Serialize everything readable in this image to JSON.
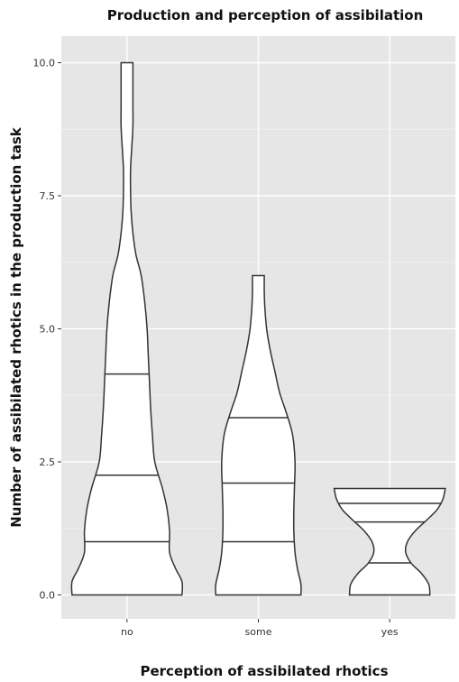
{
  "chart_data": {
    "type": "violin",
    "title": "Production and perception of assibilation",
    "xlabel": "Perception of assibilated rhotics",
    "ylabel": "Number of assibilated rhotics in the production task",
    "ylim": [
      -0.45,
      10.5
    ],
    "yticks": [
      0.0,
      2.5,
      5.0,
      7.5,
      10.0
    ],
    "ytick_labels": [
      "0.0",
      "2.5",
      "5.0",
      "7.5",
      "10.0"
    ],
    "categories": [
      "no",
      "some",
      "yes"
    ],
    "grid": true,
    "legend": "none",
    "violins": [
      {
        "category": "no",
        "range": [
          0,
          10
        ],
        "quantiles": [
          1.0,
          2.25,
          4.15
        ],
        "profile": [
          [
            0,
            0.93
          ],
          [
            0.25,
            0.93
          ],
          [
            0.5,
            0.82
          ],
          [
            0.8,
            0.72
          ],
          [
            1.2,
            0.72
          ],
          [
            1.6,
            0.68
          ],
          [
            2.0,
            0.6
          ],
          [
            2.5,
            0.47
          ],
          [
            3.0,
            0.43
          ],
          [
            3.5,
            0.4
          ],
          [
            4.0,
            0.38
          ],
          [
            4.5,
            0.36
          ],
          [
            5.0,
            0.34
          ],
          [
            5.5,
            0.3
          ],
          [
            6.0,
            0.24
          ],
          [
            6.4,
            0.15
          ],
          [
            6.8,
            0.1
          ],
          [
            7.2,
            0.07
          ],
          [
            7.6,
            0.06
          ],
          [
            8.0,
            0.06
          ],
          [
            8.4,
            0.08
          ],
          [
            8.8,
            0.1
          ],
          [
            9.2,
            0.1
          ],
          [
            9.6,
            0.1
          ],
          [
            10.0,
            0.1
          ]
        ]
      },
      {
        "category": "some",
        "range": [
          0,
          6
        ],
        "quantiles": [
          1.0,
          2.1,
          3.33
        ],
        "profile": [
          [
            0,
            0.72
          ],
          [
            0.2,
            0.72
          ],
          [
            0.5,
            0.66
          ],
          [
            0.8,
            0.62
          ],
          [
            1.2,
            0.6
          ],
          [
            1.6,
            0.6
          ],
          [
            2.0,
            0.61
          ],
          [
            2.5,
            0.62
          ],
          [
            3.0,
            0.58
          ],
          [
            3.4,
            0.48
          ],
          [
            3.8,
            0.36
          ],
          [
            4.2,
            0.28
          ],
          [
            4.6,
            0.2
          ],
          [
            5.0,
            0.14
          ],
          [
            5.4,
            0.11
          ],
          [
            5.7,
            0.1
          ],
          [
            6.0,
            0.1
          ]
        ]
      },
      {
        "category": "yes",
        "range": [
          0,
          2
        ],
        "quantiles": [
          0.6,
          1.37,
          1.72
        ],
        "profile": [
          [
            0,
            0.68
          ],
          [
            0.2,
            0.66
          ],
          [
            0.4,
            0.54
          ],
          [
            0.6,
            0.36
          ],
          [
            0.8,
            0.27
          ],
          [
            1.0,
            0.3
          ],
          [
            1.2,
            0.43
          ],
          [
            1.4,
            0.62
          ],
          [
            1.6,
            0.8
          ],
          [
            1.8,
            0.9
          ],
          [
            2.0,
            0.94
          ]
        ]
      }
    ]
  }
}
